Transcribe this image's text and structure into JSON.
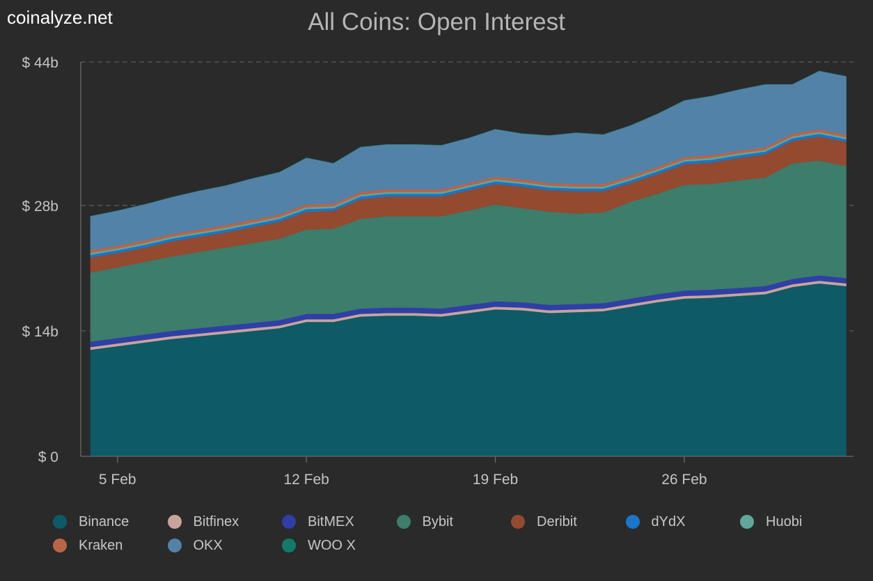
{
  "brand": "coinalyze.net",
  "chart_data": {
    "type": "area",
    "stacked": true,
    "title": "All Coins: Open Interest",
    "xlabel": "",
    "ylabel": "",
    "ylim": [
      0,
      44
    ],
    "y_unit": "$ b",
    "y_ticks": [
      {
        "value": 0,
        "label": "$ 0"
      },
      {
        "value": 14,
        "label": "$ 14b"
      },
      {
        "value": 28,
        "label": "$ 28b"
      },
      {
        "value": 44,
        "label": "$ 44b"
      }
    ],
    "x_ticks": [
      {
        "value": 5,
        "label": "5 Feb"
      },
      {
        "value": 12,
        "label": "12 Feb"
      },
      {
        "value": 19,
        "label": "19 Feb"
      },
      {
        "value": 26,
        "label": "26 Feb"
      }
    ],
    "x": [
      4,
      5,
      6,
      7,
      8,
      9,
      10,
      11,
      12,
      13,
      14,
      15,
      16,
      17,
      18,
      19,
      20,
      21,
      22,
      23,
      24,
      25,
      26,
      27,
      28,
      29,
      30,
      31,
      32
    ],
    "grid": true,
    "legend_position": "bottom",
    "series": [
      {
        "name": "Binance",
        "color": "#0e5a66",
        "values": [
          11.9,
          12.3,
          12.7,
          13.1,
          13.4,
          13.7,
          14.0,
          14.3,
          15.0,
          15.0,
          15.6,
          15.7,
          15.7,
          15.6,
          16.0,
          16.4,
          16.3,
          16.0,
          16.1,
          16.2,
          16.7,
          17.2,
          17.6,
          17.7,
          17.9,
          18.1,
          18.9,
          19.3,
          19.0
        ]
      },
      {
        "name": "Bitfinex",
        "color": "#c9a49b",
        "values": [
          0.3,
          0.3,
          0.3,
          0.3,
          0.3,
          0.3,
          0.3,
          0.3,
          0.3,
          0.3,
          0.3,
          0.3,
          0.3,
          0.3,
          0.3,
          0.3,
          0.3,
          0.3,
          0.3,
          0.3,
          0.3,
          0.3,
          0.3,
          0.3,
          0.3,
          0.3,
          0.3,
          0.3,
          0.3
        ]
      },
      {
        "name": "BitMEX",
        "color": "#2f3fa5",
        "values": [
          0.6,
          0.6,
          0.6,
          0.6,
          0.6,
          0.6,
          0.6,
          0.6,
          0.6,
          0.6,
          0.6,
          0.6,
          0.6,
          0.6,
          0.6,
          0.6,
          0.6,
          0.6,
          0.6,
          0.6,
          0.6,
          0.6,
          0.6,
          0.6,
          0.6,
          0.6,
          0.6,
          0.6,
          0.6
        ]
      },
      {
        "name": "Bybit",
        "color": "#3c7d6c",
        "values": [
          7.7,
          7.9,
          8.1,
          8.3,
          8.5,
          8.7,
          8.9,
          9.1,
          9.4,
          9.5,
          10.0,
          10.2,
          10.2,
          10.3,
          10.5,
          10.8,
          10.5,
          10.4,
          10.1,
          10.1,
          10.8,
          11.2,
          11.8,
          11.8,
          12.0,
          12.1,
          12.9,
          12.8,
          12.5
        ]
      },
      {
        "name": "Deribit",
        "color": "#934a2e",
        "values": [
          1.7,
          1.6,
          1.6,
          1.7,
          1.7,
          1.7,
          1.8,
          1.9,
          2.0,
          2.0,
          2.2,
          2.2,
          2.2,
          2.2,
          2.3,
          2.3,
          2.4,
          2.4,
          2.5,
          2.4,
          2.1,
          2.2,
          2.3,
          2.4,
          2.5,
          2.6,
          2.5,
          2.7,
          2.7
        ]
      },
      {
        "name": "dYdX",
        "color": "#1976c9",
        "values": [
          0.3,
          0.3,
          0.3,
          0.3,
          0.3,
          0.3,
          0.3,
          0.3,
          0.3,
          0.3,
          0.3,
          0.3,
          0.3,
          0.3,
          0.3,
          0.3,
          0.3,
          0.3,
          0.3,
          0.3,
          0.3,
          0.3,
          0.3,
          0.3,
          0.3,
          0.3,
          0.3,
          0.3,
          0.3
        ]
      },
      {
        "name": "Huobi",
        "color": "#5fa89b",
        "values": [
          0.2,
          0.2,
          0.2,
          0.2,
          0.2,
          0.2,
          0.2,
          0.2,
          0.2,
          0.2,
          0.2,
          0.2,
          0.2,
          0.2,
          0.2,
          0.2,
          0.2,
          0.2,
          0.2,
          0.2,
          0.2,
          0.2,
          0.2,
          0.2,
          0.2,
          0.2,
          0.2,
          0.2,
          0.2
        ]
      },
      {
        "name": "Kraken",
        "color": "#b86548",
        "values": [
          0.3,
          0.3,
          0.3,
          0.3,
          0.3,
          0.3,
          0.3,
          0.3,
          0.3,
          0.3,
          0.3,
          0.3,
          0.3,
          0.3,
          0.3,
          0.3,
          0.3,
          0.3,
          0.3,
          0.3,
          0.3,
          0.3,
          0.3,
          0.3,
          0.3,
          0.3,
          0.3,
          0.3,
          0.3
        ]
      },
      {
        "name": "OKX",
        "color": "#5382a8",
        "values": [
          3.8,
          3.9,
          4.0,
          4.1,
          4.3,
          4.4,
          4.6,
          4.7,
          5.2,
          4.5,
          5.0,
          5.0,
          5.0,
          4.9,
          5.0,
          5.3,
          5.1,
          5.3,
          5.7,
          5.5,
          5.6,
          5.9,
          6.3,
          6.6,
          6.8,
          7.0,
          5.5,
          6.5,
          6.5
        ]
      },
      {
        "name": "WOO X",
        "color": "#147a68",
        "values": [
          0,
          0,
          0,
          0,
          0,
          0,
          0,
          0,
          0,
          0,
          0,
          0,
          0,
          0,
          0,
          0,
          0,
          0,
          0,
          0,
          0,
          0,
          0,
          0,
          0,
          0,
          0,
          0,
          0
        ]
      }
    ]
  }
}
